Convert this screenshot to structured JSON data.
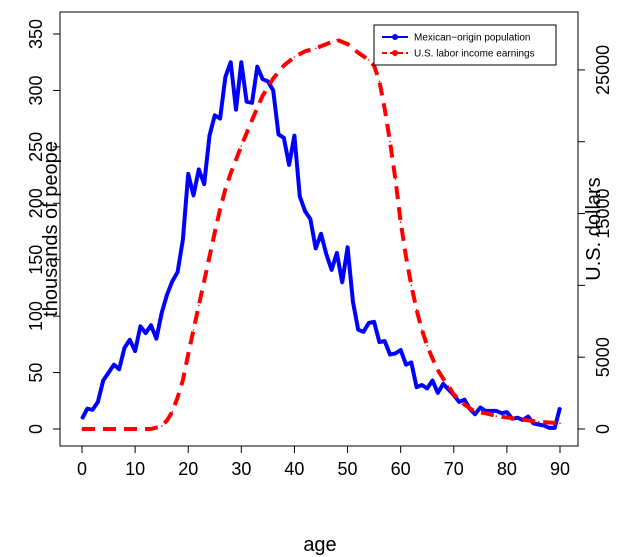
{
  "chart_data": {
    "type": "line",
    "title": "",
    "xlabel": "age",
    "ylabel": "thousands of peope",
    "y2label": "U.S. dollars",
    "xlim": [
      0,
      90
    ],
    "ylim": [
      0,
      350
    ],
    "y2lim": [
      0,
      27500
    ],
    "x_ticks": [
      "0",
      "10",
      "20",
      "30",
      "40",
      "50",
      "60",
      "70",
      "80",
      "90"
    ],
    "y_ticks": [
      "0",
      "50",
      "100",
      "150",
      "200",
      "250",
      "300",
      "350"
    ],
    "y2_ticks": [
      "0",
      "5000",
      "15000",
      "25000"
    ],
    "grid": false,
    "legend": "top-right",
    "series": [
      {
        "name": "Mexican−origin population",
        "axis": "left",
        "color": "#0000ff",
        "style": "solid-with-markers",
        "x": [
          0,
          1,
          2,
          3,
          4,
          5,
          6,
          7,
          8,
          9,
          10,
          11,
          12,
          13,
          14,
          15,
          16,
          17,
          18,
          19,
          20,
          21,
          22,
          23,
          24,
          25,
          26,
          27,
          28,
          29,
          30,
          31,
          32,
          33,
          34,
          35,
          36,
          37,
          38,
          39,
          40,
          41,
          42,
          43,
          44,
          45,
          46,
          47,
          48,
          49,
          50,
          51,
          52,
          53,
          54,
          55,
          56,
          57,
          58,
          59,
          60,
          61,
          62,
          63,
          64,
          65,
          66,
          67,
          68,
          69,
          70,
          71,
          72,
          73,
          74,
          75,
          76,
          77,
          78,
          79,
          80,
          81,
          82,
          83,
          84,
          85,
          86,
          87,
          88,
          89,
          90
        ],
        "values": [
          9,
          18,
          17,
          24,
          43,
          50,
          57,
          53,
          72,
          79,
          69,
          91,
          85,
          92,
          80,
          103,
          119,
          131,
          139,
          168,
          226,
          207,
          230,
          217,
          260,
          278,
          275,
          312,
          325,
          283,
          325,
          290,
          289,
          321,
          310,
          308,
          300,
          261,
          258,
          234,
          260,
          206,
          193,
          186,
          160,
          173,
          155,
          141,
          156,
          130,
          161,
          113,
          88,
          86,
          94,
          95,
          77,
          78,
          66,
          67,
          70,
          57,
          59,
          37,
          39,
          36,
          43,
          32,
          40,
          35,
          30,
          24,
          26,
          18,
          13,
          19,
          16,
          16,
          16,
          14,
          15,
          9,
          10,
          8,
          11,
          5,
          4,
          3,
          1,
          1,
          19
        ]
      },
      {
        "name": "U.S. labor income earnings",
        "axis": "right",
        "color": "#ff0000",
        "style": "dashed",
        "x": [
          0,
          5,
          10,
          13,
          15,
          16,
          17,
          18,
          19,
          20,
          21,
          22,
          23,
          24,
          25,
          26,
          27,
          28,
          30,
          32,
          34,
          36,
          38,
          40,
          42,
          44,
          46,
          48,
          50,
          52,
          54,
          55,
          56,
          57,
          58,
          59,
          60,
          61,
          62,
          63,
          64,
          65,
          66,
          67,
          68,
          69,
          70,
          72,
          74,
          76,
          78,
          80,
          82,
          84,
          86,
          88,
          90
        ],
        "values": [
          0,
          0,
          0,
          0,
          200,
          600,
          1200,
          2200,
          3400,
          5200,
          6900,
          8600,
          10300,
          12000,
          13700,
          15300,
          16700,
          17800,
          19700,
          21500,
          23200,
          24400,
          25300,
          25900,
          26300,
          26500,
          26800,
          27100,
          26800,
          26200,
          25700,
          25300,
          24200,
          22300,
          20000,
          17400,
          14400,
          12000,
          10000,
          8300,
          6900,
          5800,
          4900,
          4100,
          3500,
          3000,
          2400,
          1700,
          1200,
          1100,
          900,
          800,
          700,
          600,
          500,
          450,
          400
        ]
      }
    ]
  }
}
